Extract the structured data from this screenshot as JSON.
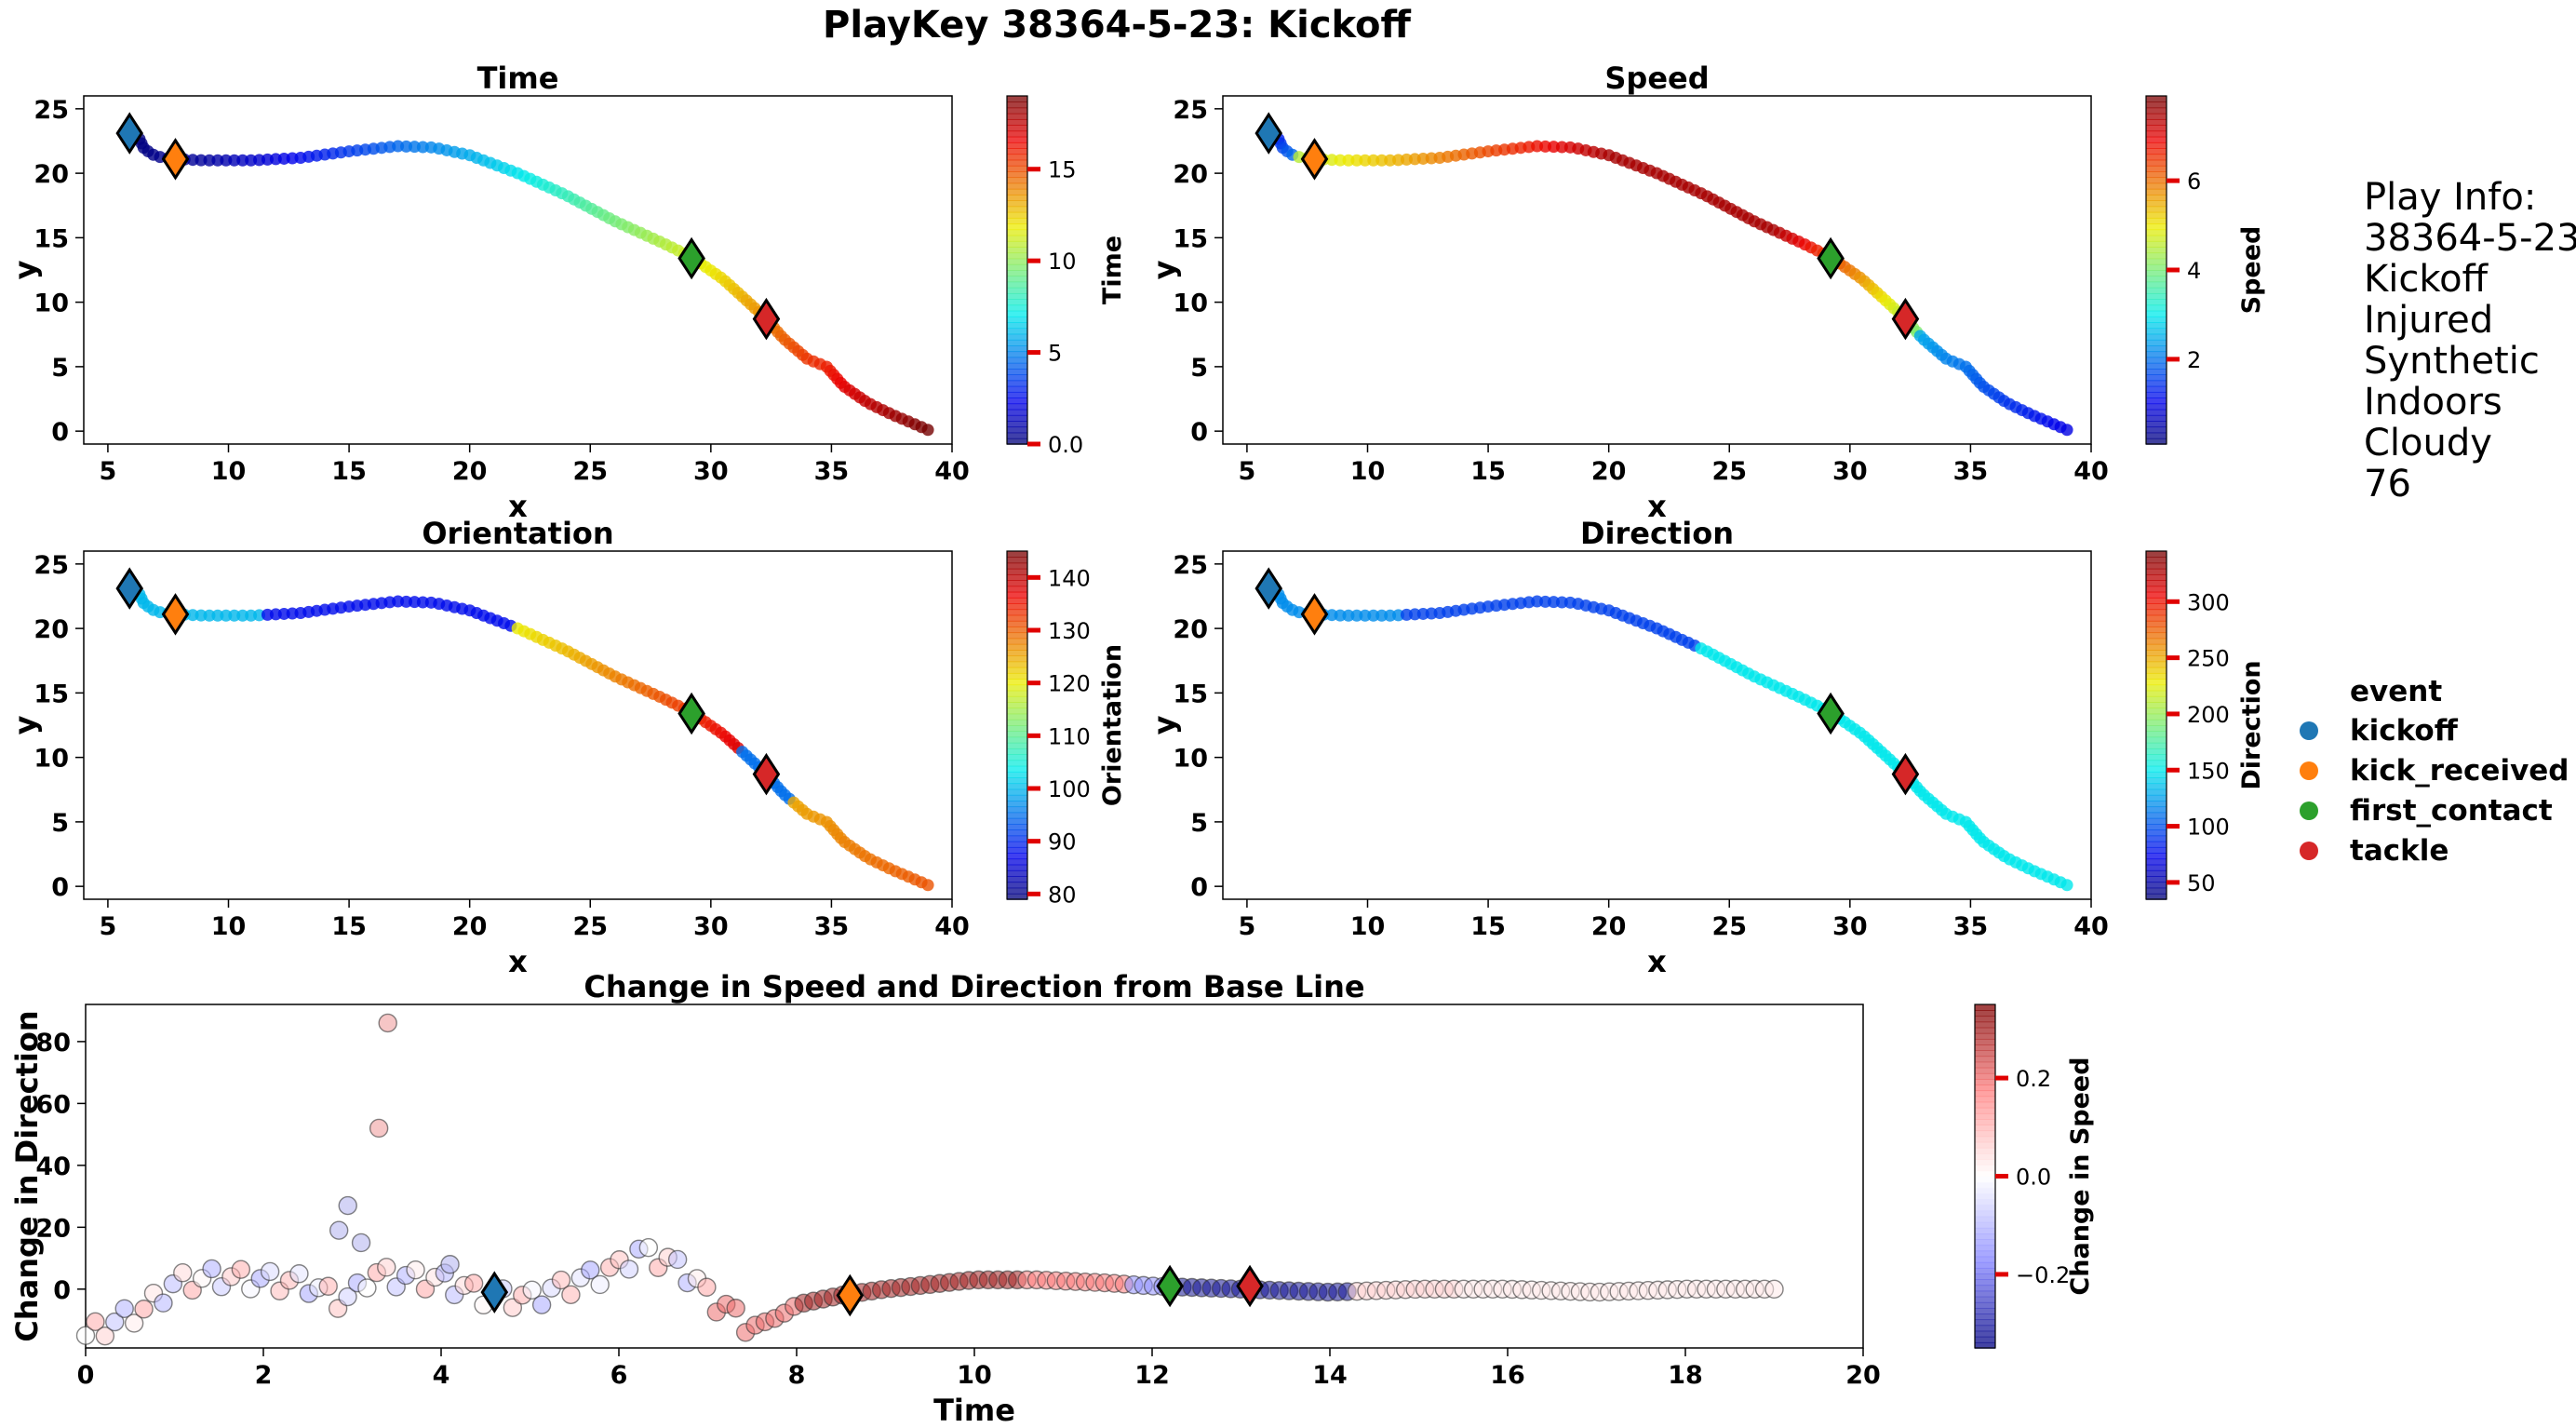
{
  "title": "PlayKey 38364-5-23: Kickoff",
  "colors": {
    "kickoff": "#1f77b4",
    "kick_received": "#ff7f0e",
    "first_contact": "#2ca02c",
    "tackle": "#d62728"
  },
  "info": {
    "lines": [
      "Play Info:",
      "38364-5-23",
      "Kickoff",
      "Injured",
      "Synthetic",
      "Indoors",
      "Cloudy",
      "76"
    ]
  },
  "legend": {
    "title": "event",
    "items": [
      {
        "label": "kickoff",
        "color": "#1f77b4"
      },
      {
        "label": "kick_received",
        "color": "#ff7f0e"
      },
      {
        "label": "first_contact",
        "color": "#2ca02c"
      },
      {
        "label": "tackle",
        "color": "#d62728"
      }
    ]
  },
  "chart_data": [
    {
      "type": "scatter",
      "id": "time",
      "title": "Time",
      "xlabel": "x",
      "ylabel": "y",
      "xlim": [
        4,
        40
      ],
      "ylim": [
        -1,
        26
      ],
      "xticks": [
        5,
        10,
        15,
        20,
        25,
        30,
        35,
        40
      ],
      "yticks": [
        0,
        5,
        10,
        15,
        20,
        25
      ],
      "colorbar": {
        "label": "Time",
        "range": [
          0,
          19
        ],
        "ticks": [
          0,
          5,
          10,
          15
        ],
        "cmap": "jet"
      },
      "color_variable": "time",
      "trajectory_keypoints": {
        "x": [
          5.8,
          6.3,
          6.5,
          7.0,
          7.8,
          9.0,
          11,
          13,
          15,
          17,
          18.5,
          20,
          22,
          24,
          26,
          28,
          29.2,
          30.5,
          31.5,
          32.3,
          33,
          34,
          34.8,
          35.5,
          36.5,
          37.5,
          38.5,
          39.0
        ],
        "y": [
          23.1,
          22.7,
          21.9,
          21.3,
          21.1,
          21.0,
          21.0,
          21.2,
          21.7,
          22.1,
          22.0,
          21.4,
          20.0,
          18.3,
          16.3,
          14.6,
          13.5,
          11.8,
          10.1,
          8.7,
          7.2,
          5.6,
          5.0,
          3.5,
          2.2,
          1.3,
          0.5,
          0.1
        ]
      },
      "events": [
        {
          "event": "kickoff",
          "x": 5.9,
          "y": 23.1
        },
        {
          "event": "kick_received",
          "x": 7.8,
          "y": 21.1
        },
        {
          "event": "first_contact",
          "x": 29.2,
          "y": 13.4
        },
        {
          "event": "tackle",
          "x": 32.3,
          "y": 8.7
        }
      ]
    },
    {
      "type": "scatter",
      "id": "speed",
      "title": "Speed",
      "xlabel": "x",
      "ylabel": "y",
      "xlim": [
        4,
        40
      ],
      "ylim": [
        -1,
        26
      ],
      "xticks": [
        5,
        10,
        15,
        20,
        25,
        30,
        35,
        40
      ],
      "yticks": [
        0,
        5,
        10,
        15,
        20,
        25
      ],
      "colorbar": {
        "label": "Speed",
        "range": [
          0.1,
          7.9
        ],
        "ticks": [
          2,
          4,
          6
        ],
        "cmap": "jet"
      },
      "color_variable": "speed",
      "events": [
        {
          "event": "kickoff",
          "x": 5.9,
          "y": 23.1
        },
        {
          "event": "kick_received",
          "x": 7.8,
          "y": 21.1
        },
        {
          "event": "first_contact",
          "x": 29.2,
          "y": 13.4
        },
        {
          "event": "tackle",
          "x": 32.3,
          "y": 8.7
        }
      ]
    },
    {
      "type": "scatter",
      "id": "orientation",
      "title": "Orientation",
      "xlabel": "x",
      "ylabel": "y",
      "xlim": [
        4,
        40
      ],
      "ylim": [
        -1,
        26
      ],
      "xticks": [
        5,
        10,
        15,
        20,
        25,
        30,
        35,
        40
      ],
      "yticks": [
        0,
        5,
        10,
        15,
        20,
        25
      ],
      "colorbar": {
        "label": "Orientation",
        "range": [
          79,
          145
        ],
        "ticks": [
          80,
          90,
          100,
          110,
          120,
          130,
          140
        ],
        "cmap": "jet"
      },
      "color_variable": "orientation",
      "events": [
        {
          "event": "kickoff",
          "x": 5.9,
          "y": 23.1
        },
        {
          "event": "kick_received",
          "x": 7.8,
          "y": 21.1
        },
        {
          "event": "first_contact",
          "x": 29.2,
          "y": 13.4
        },
        {
          "event": "tackle",
          "x": 32.3,
          "y": 8.7
        }
      ]
    },
    {
      "type": "scatter",
      "id": "direction",
      "title": "Direction",
      "xlabel": "x",
      "ylabel": "y",
      "xlim": [
        4,
        40
      ],
      "ylim": [
        -1,
        26
      ],
      "xticks": [
        5,
        10,
        15,
        20,
        25,
        30,
        35,
        40
      ],
      "yticks": [
        0,
        5,
        10,
        15,
        20,
        25
      ],
      "colorbar": {
        "label": "Direction",
        "range": [
          35,
          345
        ],
        "ticks": [
          50,
          100,
          150,
          200,
          250,
          300
        ],
        "cmap": "jet"
      },
      "color_variable": "direction",
      "events": [
        {
          "event": "kickoff",
          "x": 5.9,
          "y": 23.1
        },
        {
          "event": "kick_received",
          "x": 7.8,
          "y": 21.1
        },
        {
          "event": "first_contact",
          "x": 29.2,
          "y": 13.4
        },
        {
          "event": "tackle",
          "x": 32.3,
          "y": 8.7
        }
      ]
    },
    {
      "type": "scatter",
      "id": "change",
      "title": "Change in Speed and Direction from Base Line",
      "xlabel": "Time",
      "ylabel": "Change in Direction",
      "xlim": [
        0,
        20
      ],
      "ylim": [
        -19,
        92
      ],
      "xticks": [
        0,
        2,
        4,
        6,
        8,
        10,
        12,
        14,
        16,
        18,
        20
      ],
      "yticks": [
        0,
        20,
        40,
        60,
        80
      ],
      "colorbar": {
        "label": "Change in Speed",
        "range": [
          -0.35,
          0.35
        ],
        "ticks": [
          -0.2,
          0.0,
          0.2
        ],
        "cmap": "seismic"
      },
      "direction_keypoints": {
        "t": [
          0,
          0.3,
          0.7,
          1.0,
          1.5,
          2.0,
          2.5,
          2.8,
          3.0,
          3.2,
          3.5,
          4.0,
          4.5,
          5.0,
          5.5,
          6.0,
          6.2,
          6.5,
          6.8,
          7.0,
          7.3,
          7.5,
          7.8,
          8.0,
          8.5,
          9.0,
          10.0,
          10.7,
          11.5,
          12.0,
          13.0,
          14.0,
          15.0,
          16.0,
          17.0,
          18.0,
          19.0
        ],
        "d": [
          -15,
          -11,
          -6,
          2,
          4,
          3,
          2,
          -3,
          -3,
          5,
          4,
          3,
          -2,
          -3,
          2,
          7,
          12,
          10,
          5,
          -2,
          -8,
          -12,
          -9,
          -5,
          -2,
          0,
          3,
          3,
          2,
          1,
          0,
          -1,
          0,
          0,
          -1,
          0,
          0
        ]
      },
      "direction_outliers": [
        {
          "t": 2.85,
          "d": 19
        },
        {
          "t": 2.95,
          "d": 27
        },
        {
          "t": 3.1,
          "d": 15
        },
        {
          "t": 3.3,
          "d": 52
        },
        {
          "t": 3.4,
          "d": 86
        },
        {
          "t": 4.1,
          "d": 8
        }
      ],
      "events": [
        {
          "event": "kickoff",
          "t": 4.6,
          "d": -1
        },
        {
          "event": "kick_received",
          "t": 8.6,
          "d": -2
        },
        {
          "event": "first_contact",
          "t": 12.2,
          "d": 1
        },
        {
          "event": "tackle",
          "t": 13.1,
          "d": 1
        }
      ]
    }
  ]
}
